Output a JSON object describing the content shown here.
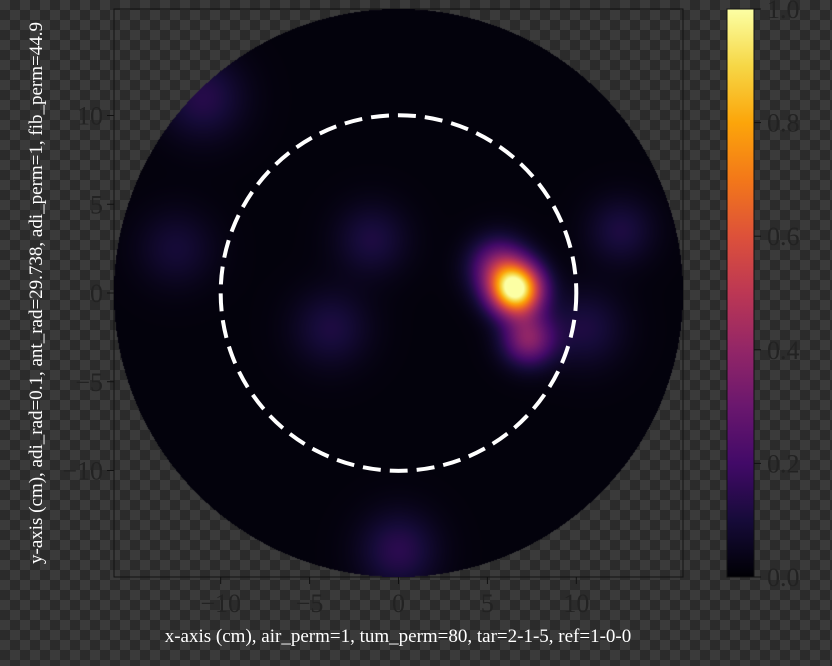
{
  "chart_data": [
    {
      "type": "heatmap",
      "title": "",
      "xlabel": "x-axis (cm), air_perm=1, tum_perm=80, tar=2-1-5, ref=1-0-0",
      "ylabel": "y-axis (cm), adi_rad=0.1, ant_rad=29.738, adi_perm=1, fib_perm=44.9",
      "xlim": [
        -16,
        16
      ],
      "ylim": [
        -16,
        16
      ],
      "xticks": [
        -10,
        -5,
        0,
        5,
        10
      ],
      "yticks": [
        -10,
        -5,
        0,
        5,
        10
      ],
      "xtick_labels": [
        "−10",
        "−5",
        "0",
        "5",
        "10"
      ],
      "ytick_labels": [
        "−10",
        "−5",
        "0",
        "5",
        "10"
      ],
      "grid": false,
      "colormap": "inferno",
      "domain_radius_cm": 16,
      "reference_circle": {
        "center": [
          0,
          0
        ],
        "radius": 10,
        "style": "dashed",
        "color": "#ffffff"
      },
      "peaks": [
        {
          "x": 6.6,
          "y": 0.2,
          "intensity": 1.0,
          "sigma": 1.0
        },
        {
          "x": 7.3,
          "y": -2.6,
          "intensity": 0.35,
          "sigma": 1.0
        },
        {
          "x": 5.6,
          "y": 1.5,
          "intensity": 0.3,
          "sigma": 1.1
        },
        {
          "x": -3.8,
          "y": -2.0,
          "intensity": 0.1,
          "sigma": 1.5
        },
        {
          "x": -1.5,
          "y": 3.0,
          "intensity": 0.1,
          "sigma": 1.4
        },
        {
          "x": -12.5,
          "y": 2.5,
          "intensity": 0.08,
          "sigma": 1.5
        },
        {
          "x": -11.0,
          "y": 11.0,
          "intensity": 0.12,
          "sigma": 1.6
        },
        {
          "x": 12.5,
          "y": 3.5,
          "intensity": 0.1,
          "sigma": 1.3
        },
        {
          "x": 0.0,
          "y": -14.5,
          "intensity": 0.13,
          "sigma": 1.5
        },
        {
          "x": 10.5,
          "y": -2.0,
          "intensity": 0.1,
          "sigma": 1.5
        }
      ]
    },
    {
      "type": "colorbar",
      "colormap": "inferno",
      "range": [
        0.0,
        1.0
      ],
      "ticks": [
        0.0,
        0.2,
        0.4,
        0.6,
        0.8,
        1.0
      ],
      "tick_labels": [
        "0.0",
        "0.2",
        "0.4",
        "0.6",
        "0.8",
        "1.0"
      ]
    }
  ],
  "colors": {
    "panel_edge": "#111111",
    "tick_text": "#222222",
    "axis_label_text": "#ffffff",
    "reference_circle": "#ffffff"
  }
}
